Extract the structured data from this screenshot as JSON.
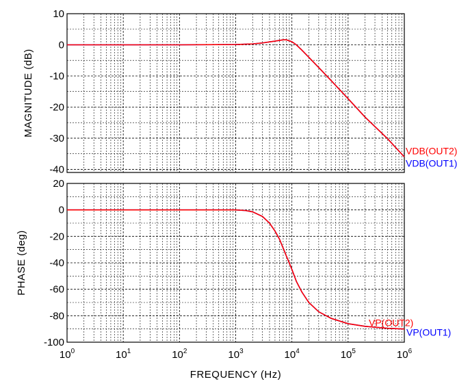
{
  "chart_data": [
    {
      "type": "line",
      "title": "",
      "xlabel": "",
      "ylabel": "MAGNITUDE (dB)",
      "xscale": "log",
      "xlim": [
        1,
        1000000
      ],
      "ylim": [
        -41,
        10
      ],
      "x_tick_labels": [
        {
          "base": "10",
          "exp": "0"
        },
        {
          "base": "10",
          "exp": "1"
        },
        {
          "base": "10",
          "exp": "2"
        },
        {
          "base": "10",
          "exp": "3"
        },
        {
          "base": "10",
          "exp": "4"
        },
        {
          "base": "10",
          "exp": "5"
        },
        {
          "base": "10",
          "exp": "6"
        }
      ],
      "y_ticks": [
        10,
        0,
        -10,
        -20,
        -30,
        -40
      ],
      "y_tick_labels": [
        "10",
        "0",
        "-10",
        "-20",
        "-30",
        "-40"
      ],
      "grid": true,
      "series": [
        {
          "name": "VDB(OUT2)",
          "color": "#ff0000",
          "x": [
            1,
            10,
            100,
            1000,
            2000,
            3000,
            5000,
            7000,
            8000,
            10000,
            12000,
            15000,
            20000,
            30000,
            50000,
            100000,
            200000,
            500000,
            1000000
          ],
          "y": [
            0,
            0,
            0,
            0.1,
            0.3,
            0.6,
            1.2,
            1.6,
            1.6,
            1.0,
            0,
            -1.7,
            -4.0,
            -7.3,
            -11.5,
            -17.3,
            -23.2,
            -30.1,
            -36.0
          ]
        },
        {
          "name": "VDB(OUT1)",
          "color": "#0000ff",
          "x": [
            1,
            10,
            100,
            1000,
            2000,
            3000,
            5000,
            7000,
            8000,
            10000,
            12000,
            15000,
            20000,
            30000,
            50000,
            100000,
            200000,
            500000,
            1000000
          ],
          "y": [
            0,
            0,
            0,
            0.1,
            0.3,
            0.6,
            1.2,
            1.6,
            1.6,
            1.0,
            0,
            -1.7,
            -4.0,
            -7.3,
            -11.5,
            -17.3,
            -23.2,
            -30.1,
            -36.0
          ]
        }
      ]
    },
    {
      "type": "line",
      "title": "",
      "xlabel": "FREQUENCY (Hz)",
      "ylabel": "PHASE (deg)",
      "xscale": "log",
      "xlim": [
        1,
        1000000
      ],
      "ylim": [
        -100,
        20
      ],
      "x_tick_labels": [
        {
          "base": "10",
          "exp": "0"
        },
        {
          "base": "10",
          "exp": "1"
        },
        {
          "base": "10",
          "exp": "2"
        },
        {
          "base": "10",
          "exp": "3"
        },
        {
          "base": "10",
          "exp": "4"
        },
        {
          "base": "10",
          "exp": "5"
        },
        {
          "base": "10",
          "exp": "6"
        }
      ],
      "y_ticks": [
        20,
        0,
        -20,
        -40,
        -60,
        -80,
        -100
      ],
      "y_tick_labels": [
        "20",
        "0",
        "-20",
        "-40",
        "-60",
        "-80",
        "-100"
      ],
      "grid": true,
      "series": [
        {
          "name": "VP(OUT2)",
          "color": "#ff0000",
          "x": [
            1,
            10,
            100,
            1000,
            1500,
            2000,
            3000,
            4000,
            5000,
            6000,
            7000,
            8000,
            10000,
            12000,
            15000,
            20000,
            30000,
            50000,
            100000,
            200000,
            500000,
            1000000
          ],
          "y": [
            0,
            0,
            0,
            0,
            -0.5,
            -1.5,
            -5,
            -10,
            -16,
            -22,
            -29,
            -35,
            -45,
            -54,
            -62,
            -70,
            -77,
            -82,
            -86,
            -88,
            -89.5,
            -90
          ]
        },
        {
          "name": "VP(OUT1)",
          "color": "#0000ff",
          "x": [
            1,
            10,
            100,
            1000,
            1500,
            2000,
            3000,
            4000,
            5000,
            6000,
            7000,
            8000,
            10000,
            12000,
            15000,
            20000,
            30000,
            50000,
            100000,
            200000,
            500000,
            1000000
          ],
          "y": [
            0,
            0,
            0,
            0,
            -0.5,
            -1.5,
            -5,
            -10,
            -16,
            -22,
            -29,
            -35,
            -45,
            -54,
            -62,
            -70,
            -77,
            -82,
            -86,
            -88,
            -89.5,
            -90
          ]
        }
      ]
    }
  ]
}
